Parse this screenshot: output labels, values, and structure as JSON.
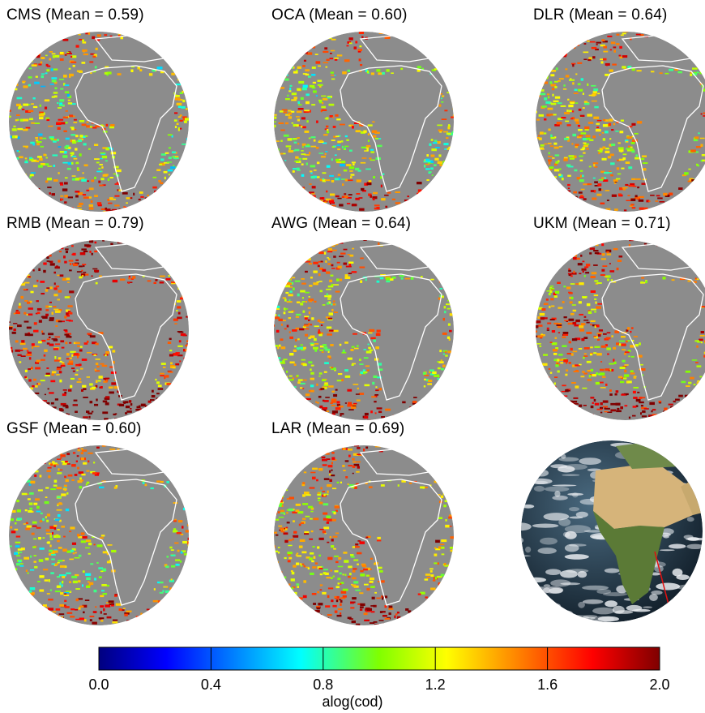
{
  "chart_data": [
    {
      "type": "heatmap",
      "title": "CMS (Mean =  0.59)",
      "dataset": "CMS",
      "mean": 0.59
    },
    {
      "type": "heatmap",
      "title": "OCA (Mean =  0.60)",
      "dataset": "OCA",
      "mean": 0.6
    },
    {
      "type": "heatmap",
      "title": "DLR (Mean =  0.64)",
      "dataset": "DLR",
      "mean": 0.64
    },
    {
      "type": "heatmap",
      "title": "RMB (Mean =  0.79)",
      "dataset": "RMB",
      "mean": 0.79
    },
    {
      "type": "heatmap",
      "title": "AWG (Mean =  0.64)",
      "dataset": "AWG",
      "mean": 0.64
    },
    {
      "type": "heatmap",
      "title": "UKM (Mean =  0.71)",
      "dataset": "UKM",
      "mean": 0.71
    },
    {
      "type": "heatmap",
      "title": "GSF (Mean =  0.60)",
      "dataset": "GSF",
      "mean": 0.6
    },
    {
      "type": "heatmap",
      "title": "LAR (Mean =  0.69)",
      "dataset": "LAR",
      "mean": 0.69
    }
  ],
  "colorbar": {
    "label": "alog(cod)",
    "min": 0.0,
    "max": 2.0,
    "ticks": [
      "0.0",
      "0.4",
      "0.8",
      "1.2",
      "1.6",
      "2.0"
    ],
    "colormap": [
      "#00007f",
      "#0000ff",
      "#00ffff",
      "#80ff00",
      "#ffff00",
      "#ff8000",
      "#ff0000",
      "#7f0000"
    ]
  },
  "colors": {
    "land": "#8c8c8c",
    "coastline": "#ffffff",
    "ocean_truecolor": "#1f3447",
    "desert": "#d4b47c",
    "vegetation": "#5f7a3a",
    "track": "#e01010"
  }
}
